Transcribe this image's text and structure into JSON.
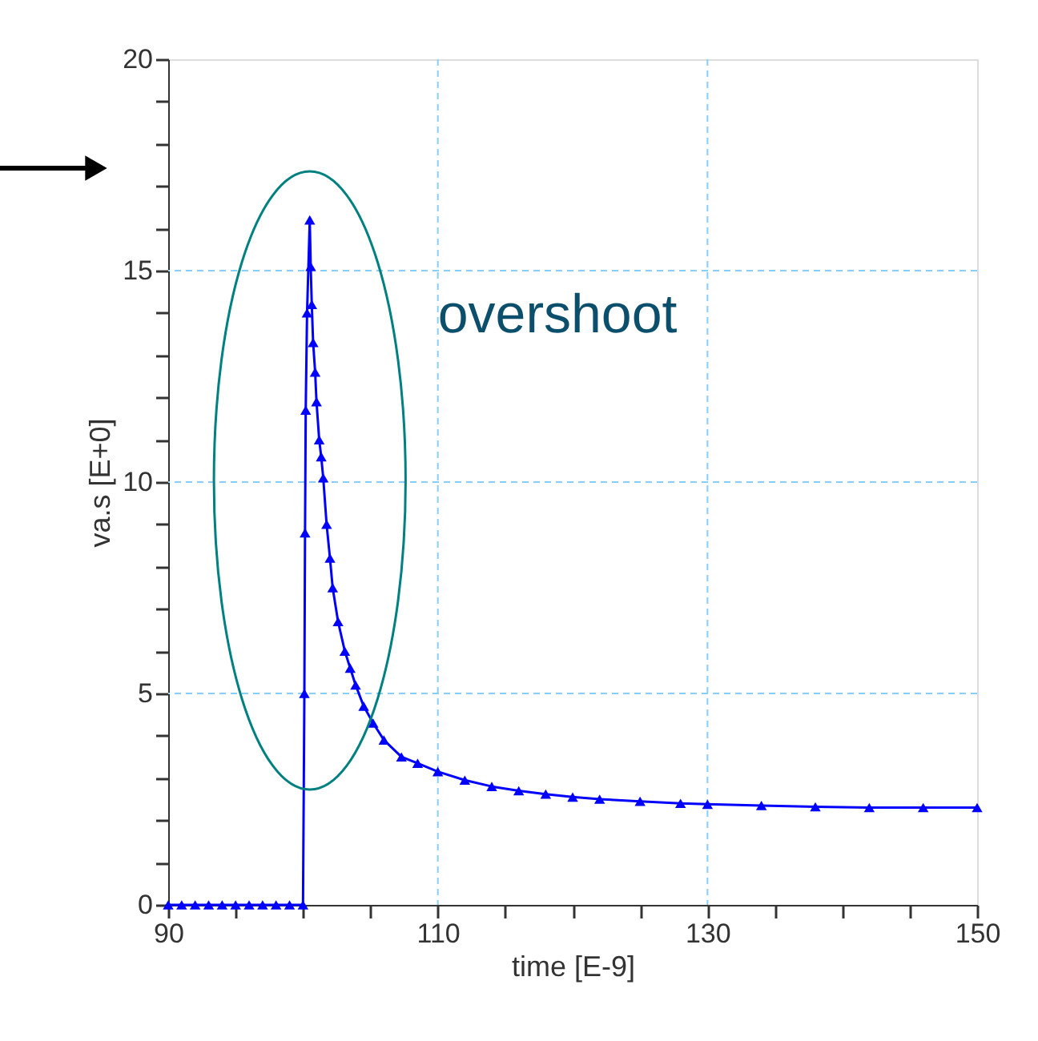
{
  "chart_data": {
    "type": "line",
    "xlabel": "time  [E-9]",
    "ylabel": "va.s  [E+0]",
    "series": [
      {
        "color": "#0000ff",
        "x": [
          90,
          91,
          92,
          93,
          94,
          95,
          96,
          97,
          98,
          99,
          100,
          100.1,
          100.15,
          100.2,
          100.3,
          100.5,
          100.57,
          100.65,
          100.75,
          100.9,
          101.0,
          101.2,
          101.35,
          101.5,
          101.75,
          102.0,
          102.2,
          102.6,
          103.1,
          103.5,
          103.9,
          104.5,
          105.2,
          106.0,
          107.3,
          108.5,
          110,
          112,
          114,
          116,
          118,
          120,
          122,
          125,
          128,
          130,
          134,
          138,
          142,
          146,
          150
        ],
        "values": [
          0,
          0,
          0,
          0,
          0,
          0,
          0,
          0,
          0,
          0,
          0,
          5.0,
          8.8,
          11.7,
          14.0,
          16.2,
          15.1,
          14.2,
          13.3,
          12.6,
          11.9,
          11.0,
          10.6,
          10.1,
          9.0,
          8.2,
          7.5,
          6.7,
          6.0,
          5.6,
          5.2,
          4.7,
          4.3,
          3.9,
          3.5,
          3.35,
          3.15,
          2.95,
          2.8,
          2.7,
          2.62,
          2.55,
          2.5,
          2.45,
          2.4,
          2.38,
          2.35,
          2.32,
          2.3,
          2.3,
          2.3
        ]
      }
    ],
    "marker": "triangle",
    "xlim": [
      90,
      150
    ],
    "ylim": [
      0,
      20
    ],
    "xticks": [
      90,
      {
        "value": 95,
        "label": null
      },
      {
        "value": 100,
        "label": null
      },
      {
        "value": 105,
        "label": null
      },
      110,
      {
        "value": 115,
        "label": null
      },
      {
        "value": 120,
        "label": null
      },
      {
        "value": 125,
        "label": null
      },
      130,
      {
        "value": 135,
        "label": null
      },
      {
        "value": 140,
        "label": null
      },
      {
        "value": 145,
        "label": null
      },
      150
    ],
    "yticks": [
      0,
      {
        "value": 1,
        "label": null
      },
      {
        "value": 2,
        "label": null
      },
      {
        "value": 3,
        "label": null
      },
      {
        "value": 4,
        "label": null
      },
      5,
      {
        "value": 6,
        "label": null
      },
      {
        "value": 7,
        "label": null
      },
      {
        "value": 8,
        "label": null
      },
      {
        "value": 9,
        "label": null
      },
      10,
      {
        "value": 11,
        "label": null
      },
      {
        "value": 12,
        "label": null
      },
      {
        "value": 13,
        "label": null
      },
      {
        "value": 14,
        "label": null
      },
      15,
      {
        "value": 16,
        "label": null
      },
      {
        "value": 17,
        "label": null
      },
      {
        "value": 18,
        "label": null
      },
      {
        "value": 19,
        "label": null
      },
      20
    ],
    "grid": true,
    "annotations": [
      {
        "text": "overshoot",
        "x": 100.5,
        "y": 16.2
      }
    ]
  }
}
